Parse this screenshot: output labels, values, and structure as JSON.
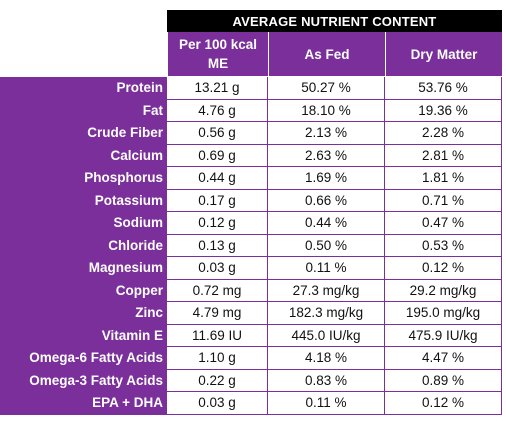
{
  "table": {
    "title": "AVERAGE NUTRIENT CONTENT",
    "columns": [
      "Per 100 kcal ME",
      "As Fed",
      "Dry Matter"
    ],
    "rows": [
      {
        "name": "Protein",
        "per100": "13.21 g",
        "asfed": "50.27 %",
        "dry": "53.76 %"
      },
      {
        "name": "Fat",
        "per100": "4.76 g",
        "asfed": "18.10 %",
        "dry": "19.36 %"
      },
      {
        "name": "Crude Fiber",
        "per100": "0.56 g",
        "asfed": "2.13 %",
        "dry": "2.28 %"
      },
      {
        "name": "Calcium",
        "per100": "0.69 g",
        "asfed": "2.63 %",
        "dry": "2.81 %"
      },
      {
        "name": "Phosphorus",
        "per100": "0.44 g",
        "asfed": "1.69 %",
        "dry": "1.81 %"
      },
      {
        "name": "Potassium",
        "per100": "0.17 g",
        "asfed": "0.66 %",
        "dry": "0.71 %"
      },
      {
        "name": "Sodium",
        "per100": "0.12 g",
        "asfed": "0.44 %",
        "dry": "0.47 %"
      },
      {
        "name": "Chloride",
        "per100": "0.13 g",
        "asfed": "0.50 %",
        "dry": "0.53 %"
      },
      {
        "name": "Magnesium",
        "per100": "0.03 g",
        "asfed": "0.11 %",
        "dry": "0.12 %"
      },
      {
        "name": "Copper",
        "per100": "0.72 mg",
        "asfed": "27.3 mg/kg",
        "dry": "29.2 mg/kg"
      },
      {
        "name": "Zinc",
        "per100": "4.79 mg",
        "asfed": "182.3 mg/kg",
        "dry": "195.0 mg/kg"
      },
      {
        "name": "Vitamin E",
        "per100": "11.69 IU",
        "asfed": "445.0 IU/kg",
        "dry": "475.9 IU/kg"
      },
      {
        "name": "Omega-6 Fatty Acids",
        "per100": "1.10 g",
        "asfed": "4.18 %",
        "dry": "4.47 %"
      },
      {
        "name": "Omega-3 Fatty Acids",
        "per100": "0.22 g",
        "asfed": "0.83 %",
        "dry": "0.89 %"
      },
      {
        "name": "EPA + DHA",
        "per100": "0.03 g",
        "asfed": "0.11 %",
        "dry": "0.12 %"
      }
    ]
  },
  "colors": {
    "header_purple": "#7a2f9a",
    "title_bg": "#000000"
  }
}
